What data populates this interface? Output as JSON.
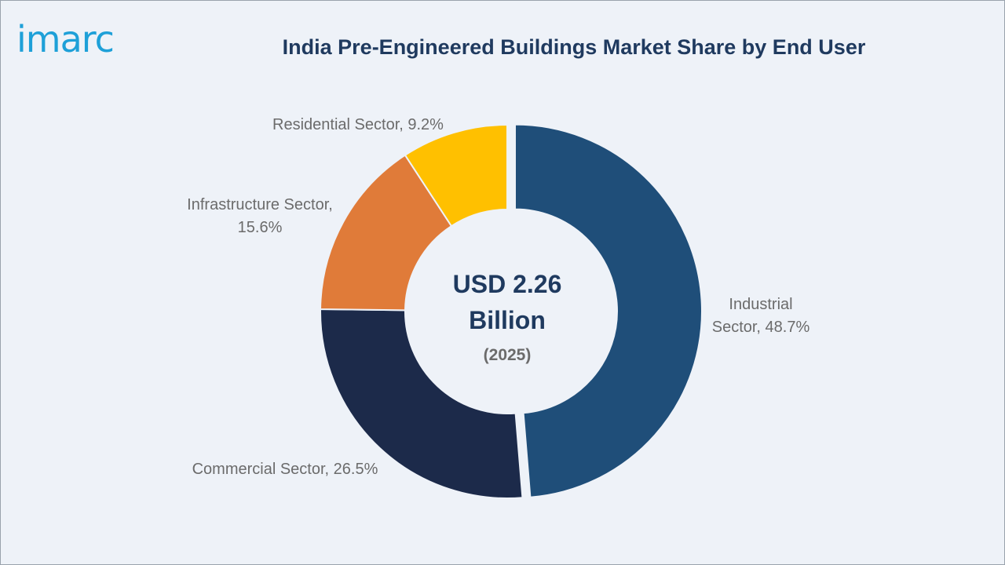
{
  "brand": {
    "logo_text": "imarc",
    "logo_color": "#1ea0d8"
  },
  "chart_data": {
    "type": "pie",
    "title": "India Pre-Engineered Buildings Market Share by End User",
    "center_value": [
      "USD 2.26",
      "Billion"
    ],
    "center_year": "(2025)",
    "slices": [
      {
        "label": "Industrial Sector",
        "value": 48.7,
        "color": "#1f4e79",
        "label_lines": [
          "Industrial",
          "Sector, 48.7%"
        ]
      },
      {
        "label": "Commercial Sector",
        "value": 26.5,
        "color": "#1c2a4a",
        "label_lines": [
          "Commercial Sector, 26.5%"
        ]
      },
      {
        "label": "Infrastructure Sector",
        "value": 15.6,
        "color": "#e07b39",
        "label_lines": [
          "Infrastructure Sector,",
          "15.6%"
        ]
      },
      {
        "label": "Residential Sector",
        "value": 9.2,
        "color": "#ffc000",
        "label_lines": [
          "Residential Sector, 9.2%"
        ]
      }
    ]
  }
}
